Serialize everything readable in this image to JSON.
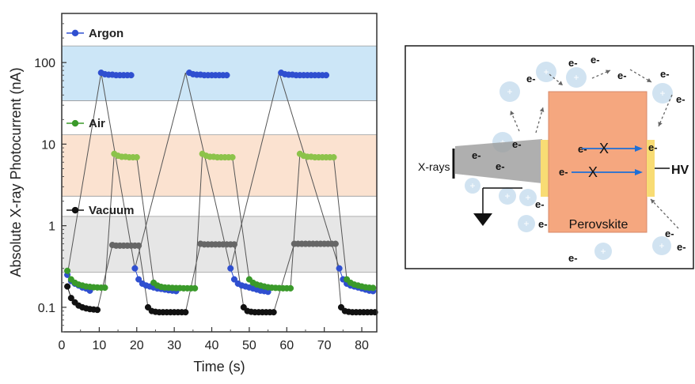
{
  "chart_data": [
    {
      "type": "scatter",
      "title": "",
      "xlabel": "Time (s)",
      "ylabel": "Absolute X-ray Photocurrent (nA)",
      "xlim": [
        0,
        84
      ],
      "ylim": [
        0.05,
        400
      ],
      "x_scale": "linear",
      "y_scale": "log",
      "x_ticks": [
        0,
        10,
        20,
        30,
        40,
        50,
        60,
        70,
        80
      ],
      "x_tick_labels": [
        "0",
        "10",
        "20",
        "30",
        "40",
        "50",
        "60",
        "70",
        "80"
      ],
      "y_ticks": [
        0.1,
        1,
        10,
        100
      ],
      "y_tick_labels": [
        "0.1",
        "1",
        "10",
        "100"
      ],
      "grid": false,
      "legend": "inline-left",
      "bands": [
        {
          "from": 34,
          "to": 160,
          "color": "#cce6f7"
        },
        {
          "from": 2.3,
          "to": 13,
          "color": "#fbe2d0"
        },
        {
          "from": 0.27,
          "to": 1.3,
          "color": "#e6e6e6"
        }
      ],
      "series": [
        {
          "name": "Argon",
          "color": "#2f4fd0",
          "light_color": "#7a8fe6",
          "label_y": 230,
          "segments": [
            {
              "x": [
                1.5,
                2.5,
                3.5,
                4.5,
                5.5,
                6.5,
                7.5
              ],
              "y": [
                0.25,
                0.21,
                0.195,
                0.185,
                0.175,
                0.17,
                0.16
              ]
            },
            {
              "x": [
                10.5,
                11.5,
                12.5,
                13.5,
                14.5,
                15.5,
                16.5,
                17.5,
                18.5
              ],
              "y": [
                75,
                72,
                71,
                71,
                70,
                70,
                70,
                70,
                70
              ]
            },
            {
              "x": [
                19.5,
                20.5,
                21.5,
                22.5,
                23.5,
                24.5,
                25.5,
                26.5,
                27.5,
                28.5,
                29.5,
                30.5
              ],
              "y": [
                0.3,
                0.22,
                0.195,
                0.185,
                0.18,
                0.175,
                0.17,
                0.168,
                0.165,
                0.162,
                0.16,
                0.158
              ]
            },
            {
              "x": [
                34,
                35,
                36,
                37,
                38,
                39,
                40,
                41,
                42,
                43,
                44
              ],
              "y": [
                75,
                72,
                71,
                71,
                70,
                70,
                70,
                70,
                70,
                70,
                70
              ]
            },
            {
              "x": [
                45,
                46,
                47,
                48,
                49,
                50,
                51,
                52,
                53,
                54,
                55
              ],
              "y": [
                0.3,
                0.22,
                0.195,
                0.185,
                0.18,
                0.175,
                0.17,
                0.165,
                0.16,
                0.158,
                0.155
              ]
            },
            {
              "x": [
                58.5,
                59.5,
                60.5,
                61.5,
                62.5,
                63.5,
                64.5,
                65.5,
                66.5,
                67.5,
                68.5,
                69.5,
                70.5
              ],
              "y": [
                75,
                72,
                71,
                71,
                70,
                70,
                70,
                70,
                70,
                70,
                70,
                70,
                70
              ]
            },
            {
              "x": [
                74,
                75,
                76,
                77,
                78,
                79,
                80,
                81,
                82,
                83
              ],
              "y": [
                0.3,
                0.22,
                0.195,
                0.185,
                0.18,
                0.175,
                0.17,
                0.165,
                0.16,
                0.158
              ]
            }
          ]
        },
        {
          "name": "Air",
          "color": "#3a9a2a",
          "light_color": "#8cc34a",
          "label_y": 18,
          "segments": [
            {
              "x": [
                1.5,
                2.5,
                3.5,
                4.5,
                5.5,
                6.5,
                7.5,
                8.5,
                9.5,
                10.5,
                11.5
              ],
              "y": [
                0.28,
                0.22,
                0.2,
                0.19,
                0.185,
                0.18,
                0.178,
                0.176,
                0.175,
                0.174,
                0.174
              ]
            },
            {
              "x": [
                14,
                15,
                16,
                17,
                18,
                19,
                20
              ],
              "y": [
                7.6,
                7.2,
                7.0,
                7.0,
                6.9,
                6.9,
                6.9
              ]
            },
            {
              "x": [
                24.5,
                25.5,
                26.5,
                27.5,
                28.5,
                29.5,
                30.5,
                31.5,
                32.5,
                33.5,
                34.5,
                35.5
              ],
              "y": [
                0.2,
                0.185,
                0.178,
                0.175,
                0.174,
                0.173,
                0.172,
                0.172,
                0.171,
                0.171,
                0.171,
                0.171
              ]
            },
            {
              "x": [
                37.5,
                38.5,
                39.5,
                40.5,
                41.5,
                42.5,
                43.5,
                44.5,
                45.5
              ],
              "y": [
                7.6,
                7.2,
                7.0,
                7.0,
                6.9,
                6.9,
                6.9,
                6.9,
                6.9
              ]
            },
            {
              "x": [
                50,
                51,
                52,
                53,
                54,
                55,
                56,
                57,
                58,
                59,
                60,
                61
              ],
              "y": [
                0.22,
                0.2,
                0.19,
                0.185,
                0.18,
                0.176,
                0.174,
                0.173,
                0.172,
                0.171,
                0.171,
                0.171
              ]
            },
            {
              "x": [
                63.5,
                64.5,
                65.5,
                66.5,
                67.5,
                68.5,
                69.5,
                70.5,
                71.5,
                72.5
              ],
              "y": [
                7.6,
                7.2,
                7.0,
                7.0,
                6.9,
                6.9,
                6.9,
                6.9,
                6.9,
                6.9
              ]
            },
            {
              "x": [
                76,
                77,
                78,
                79,
                80,
                81,
                82,
                83
              ],
              "y": [
                0.22,
                0.2,
                0.19,
                0.185,
                0.18,
                0.176,
                0.174,
                0.173
              ]
            }
          ]
        },
        {
          "name": "Vacuum",
          "color": "#111111",
          "light_color": "#666666",
          "label_y": 1.55,
          "segments": [
            {
              "x": [
                1.5,
                2.5,
                3.5,
                4.5,
                5.5,
                6.5,
                7.5,
                8.5,
                9.5
              ],
              "y": [
                0.18,
                0.13,
                0.115,
                0.105,
                0.1,
                0.097,
                0.095,
                0.094,
                0.093
              ]
            },
            {
              "x": [
                13.5,
                14.5,
                15.5,
                16.5,
                17.5,
                18.5,
                19.5,
                20.5
              ],
              "y": [
                0.58,
                0.57,
                0.57,
                0.57,
                0.57,
                0.57,
                0.57,
                0.57
              ]
            },
            {
              "x": [
                23,
                24,
                25,
                26,
                27,
                28,
                29,
                30,
                31,
                32,
                33
              ],
              "y": [
                0.1,
                0.09,
                0.088,
                0.087,
                0.087,
                0.087,
                0.087,
                0.087,
                0.087,
                0.087,
                0.087
              ]
            },
            {
              "x": [
                37,
                38,
                39,
                40,
                41,
                42,
                43,
                44,
                45,
                46
              ],
              "y": [
                0.6,
                0.59,
                0.59,
                0.59,
                0.59,
                0.59,
                0.59,
                0.59,
                0.59,
                0.59
              ]
            },
            {
              "x": [
                48.5,
                49.5,
                50.5,
                51.5,
                52.5,
                53.5,
                54.5,
                55.5,
                56.5
              ],
              "y": [
                0.1,
                0.09,
                0.088,
                0.087,
                0.087,
                0.087,
                0.087,
                0.087,
                0.087
              ]
            },
            {
              "x": [
                62,
                63,
                64,
                65,
                66,
                67,
                68,
                69,
                70,
                71,
                72,
                73
              ],
              "y": [
                0.6,
                0.6,
                0.6,
                0.6,
                0.6,
                0.6,
                0.6,
                0.6,
                0.6,
                0.6,
                0.6,
                0.6
              ]
            },
            {
              "x": [
                74.5,
                75.5,
                76.5,
                77.5,
                78.5,
                79.5,
                80.5,
                81.5,
                82.5,
                83.5
              ],
              "y": [
                0.1,
                0.09,
                0.088,
                0.087,
                0.087,
                0.087,
                0.087,
                0.087,
                0.087,
                0.087
              ]
            }
          ]
        }
      ],
      "transitions": [
        {
          "x1": 1.5,
          "y1": 0.25,
          "x2": 10.5,
          "y2": 75
        },
        {
          "x1": 10.5,
          "y1": 75,
          "x2": 19.5,
          "y2": 0.3
        },
        {
          "x1": 19.5,
          "y1": 0.3,
          "x2": 33,
          "y2": 75
        },
        {
          "x1": 33,
          "y1": 75,
          "x2": 45,
          "y2": 0.3
        },
        {
          "x1": 45,
          "y1": 0.3,
          "x2": 58,
          "y2": 75
        },
        {
          "x1": 58,
          "y1": 75,
          "x2": 74,
          "y2": 0.3
        },
        {
          "x1": 11.5,
          "y1": 0.174,
          "x2": 14,
          "y2": 7.6
        },
        {
          "x1": 20,
          "y1": 6.9,
          "x2": 24.5,
          "y2": 0.2
        },
        {
          "x1": 35.5,
          "y1": 0.171,
          "x2": 37.5,
          "y2": 7.6
        },
        {
          "x1": 45.5,
          "y1": 6.9,
          "x2": 50,
          "y2": 0.22
        },
        {
          "x1": 61,
          "y1": 0.171,
          "x2": 63.5,
          "y2": 7.6
        },
        {
          "x1": 72.5,
          "y1": 6.9,
          "x2": 76,
          "y2": 0.22
        },
        {
          "x1": 9.5,
          "y1": 0.093,
          "x2": 13.5,
          "y2": 0.58
        },
        {
          "x1": 20.5,
          "y1": 0.57,
          "x2": 23,
          "y2": 0.1
        },
        {
          "x1": 33,
          "y1": 0.087,
          "x2": 37,
          "y2": 0.6
        },
        {
          "x1": 46,
          "y1": 0.59,
          "x2": 48.5,
          "y2": 0.1
        },
        {
          "x1": 56.5,
          "y1": 0.087,
          "x2": 62,
          "y2": 0.6
        },
        {
          "x1": 73,
          "y1": 0.6,
          "x2": 74.5,
          "y2": 0.1
        }
      ]
    }
  ],
  "diagram": {
    "xrays_label": "X-rays",
    "electron_label": "e-",
    "blocked_mark": "X",
    "perovskite_label": "Perovskite",
    "hv_label": "HV",
    "colors": {
      "perovskite": "#f5a77f",
      "perovskite_border": "#d7886a",
      "contact": "#f8dc74",
      "gas_particle": "#cfe1f0",
      "electron_arrow": "#1e6fd6",
      "frame": "#1a1a1a"
    }
  }
}
